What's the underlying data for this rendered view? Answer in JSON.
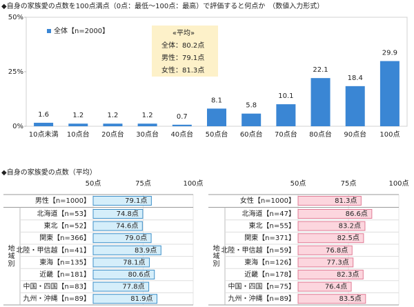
{
  "chart_data": [
    {
      "type": "bar",
      "title": "◆自身の家族愛の点数を100点満点（0点：最低～100点：最高）で評価すると何点か　（数値入力形式）",
      "categories": [
        "10点未満",
        "10点台",
        "20点台",
        "30点台",
        "40点台",
        "50点台",
        "60点台",
        "70点台",
        "80点台",
        "90点台",
        "100点"
      ],
      "series": [
        {
          "name": "全体【n=2000】",
          "color": "#3a86d4",
          "values": [
            1.6,
            1.2,
            1.2,
            1.2,
            0.7,
            8.1,
            5.8,
            10.1,
            22.1,
            18.4,
            29.9
          ]
        }
      ],
      "ylim": [
        0,
        50
      ],
      "yticks": [
        {
          "value": 0,
          "label": "0%"
        },
        {
          "value": 25,
          "label": "25%"
        },
        {
          "value": 50,
          "label": "50%"
        }
      ],
      "grid": false,
      "legend": "top-left",
      "annotations": [
        "«平均»",
        "全体：80.2点",
        "男性：79.1点",
        "女性：81.3点"
      ]
    },
    {
      "type": "hbar",
      "title": "◆自身の家族愛の点数（平均）",
      "categories": [
        "男性【n=1000】",
        "北海道【n=53】",
        "東北【n=52】",
        "関東【n=366】",
        "北陸・甲信越【n=41】",
        "東海【n=135】",
        "近畿【n=181】",
        "中国・四国【n=83】",
        "九州・沖縄【n=89】"
      ],
      "values": [
        79.1,
        74.8,
        74.6,
        79.0,
        83.9,
        78.1,
        80.6,
        77.8,
        81.9
      ],
      "value_labels": [
        "79.1点",
        "74.8点",
        "74.6点",
        "79.0点",
        "83.9点",
        "78.1点",
        "80.6点",
        "77.8点",
        "81.9点"
      ],
      "color": "#d5eefa",
      "edge_color": "#3d8fc8",
      "group_label": "地域別",
      "xlim": [
        50,
        100
      ],
      "xticks": [
        {
          "value": 50,
          "label": "50点"
        },
        {
          "value": 75,
          "label": "75点"
        },
        {
          "value": 100,
          "label": "100点"
        }
      ]
    },
    {
      "type": "hbar",
      "categories": [
        "女性【n=1000】",
        "北海道【n=47】",
        "東北【n=55】",
        "関東【n=371】",
        "北陸・甲信越【n=59】",
        "東海【n=126】",
        "近畿【n=178】",
        "中国・四国【n=75】",
        "九州・沖縄【n=89】"
      ],
      "values": [
        81.3,
        86.6,
        83.2,
        82.5,
        76.8,
        77.3,
        82.3,
        76.4,
        83.5
      ],
      "value_labels": [
        "81.3点",
        "86.6点",
        "83.2点",
        "82.5点",
        "76.8点",
        "77.3点",
        "82.3点",
        "76.4点",
        "83.5点"
      ],
      "color": "#fcd6de",
      "edge_color": "#e07b95",
      "group_label": "地域別",
      "xlim": [
        50,
        100
      ],
      "xticks": [
        {
          "value": 50,
          "label": "50点"
        },
        {
          "value": 75,
          "label": "75点"
        },
        {
          "value": 100,
          "label": "100点"
        }
      ]
    }
  ]
}
